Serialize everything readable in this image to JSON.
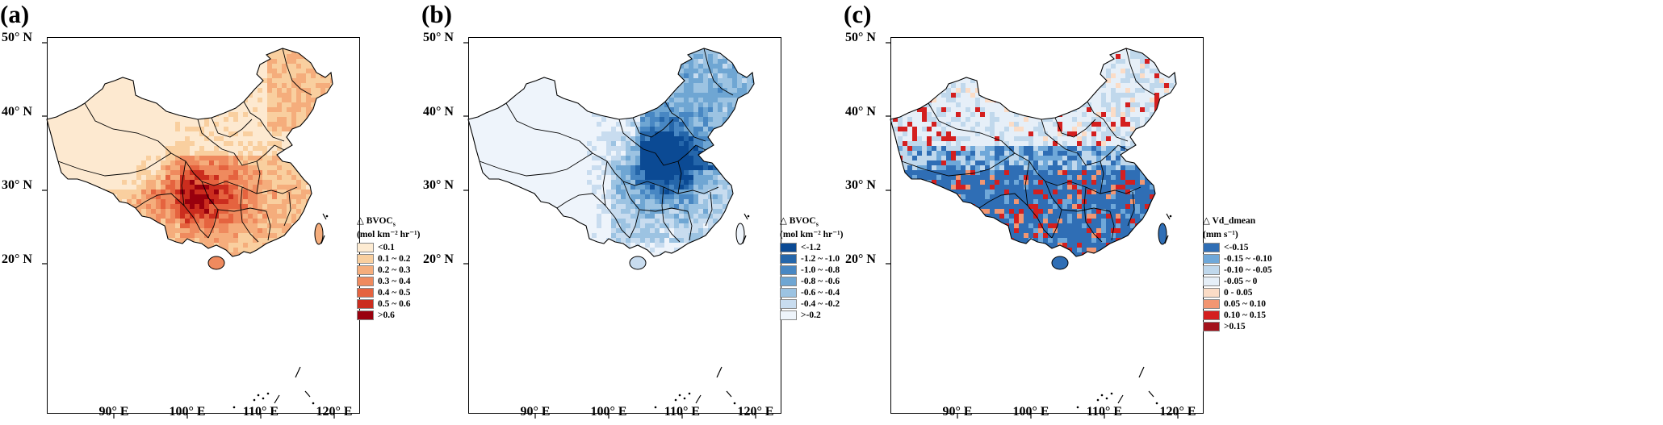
{
  "panels": [
    {
      "label": "(a)",
      "legend": {
        "title": "△ BVOC",
        "title_sub": "s",
        "unit": "(mol km⁻² hr⁻¹)",
        "items": [
          {
            "label": "<0.1",
            "color": "#fdebd2"
          },
          {
            "label": "0.1 ~ 0.2",
            "color": "#f9cf9f"
          },
          {
            "label": "0.2 ~ 0.3",
            "color": "#f5ad7c"
          },
          {
            "label": "0.3 ~ 0.4",
            "color": "#ef8a5e"
          },
          {
            "label": "0.4 ~ 0.5",
            "color": "#e5633f"
          },
          {
            "label": "0.5 ~ 0.6",
            "color": "#cb2d1e"
          },
          {
            "label": ">0.6",
            "color": "#99000d"
          }
        ]
      },
      "base_fill": "#fde9d0"
    },
    {
      "label": "(b)",
      "legend": {
        "title": "△ BVOC",
        "title_sub": "s",
        "unit": "(mol km⁻² hr⁻¹)",
        "items": [
          {
            "label": "<-1.2",
            "color": "#0b4a94"
          },
          {
            "label": "-1.2 ~ -1.0",
            "color": "#2566aa"
          },
          {
            "label": "-1.0 ~ -0.8",
            "color": "#4887c3"
          },
          {
            "label": "-0.8 ~ -0.6",
            "color": "#6fa6d3"
          },
          {
            "label": "-0.6 ~ -0.4",
            "color": "#9cc3e2"
          },
          {
            "label": "-0.4 ~ -0.2",
            "color": "#c8dcef"
          },
          {
            "label": ">-0.2",
            "color": "#eef4fb"
          }
        ]
      },
      "base_fill": "#eef4fb"
    },
    {
      "label": "(c)",
      "legend": {
        "title": "△ Vd_dmean",
        "title_sub": "",
        "unit": "(mm s⁻¹)",
        "items": [
          {
            "label": "<-0.15",
            "color": "#2f6eb5"
          },
          {
            "label": "-0.15 ~ -0.10",
            "color": "#6fa8d9"
          },
          {
            "label": "-0.10 ~ -0.05",
            "color": "#c0d8ec"
          },
          {
            "label": "-0.05 ~ 0",
            "color": "#e6eff8"
          },
          {
            "label": "0 - 0.05",
            "color": "#fbdcc6"
          },
          {
            "label": "0.05 ~ 0.10",
            "color": "#f29672"
          },
          {
            "label": "0.10 ~ 0.15",
            "color": "#d41f1f"
          },
          {
            "label": ">0.15",
            "color": "#a3111b"
          }
        ]
      },
      "base_fill": "#e6eff8"
    }
  ],
  "axes": {
    "lat_ticks": [
      "50° N",
      "40° N",
      "30° N",
      "20° N"
    ],
    "lon_ticks": [
      "90° E",
      "100° E",
      "110° E",
      "120° E"
    ]
  }
}
